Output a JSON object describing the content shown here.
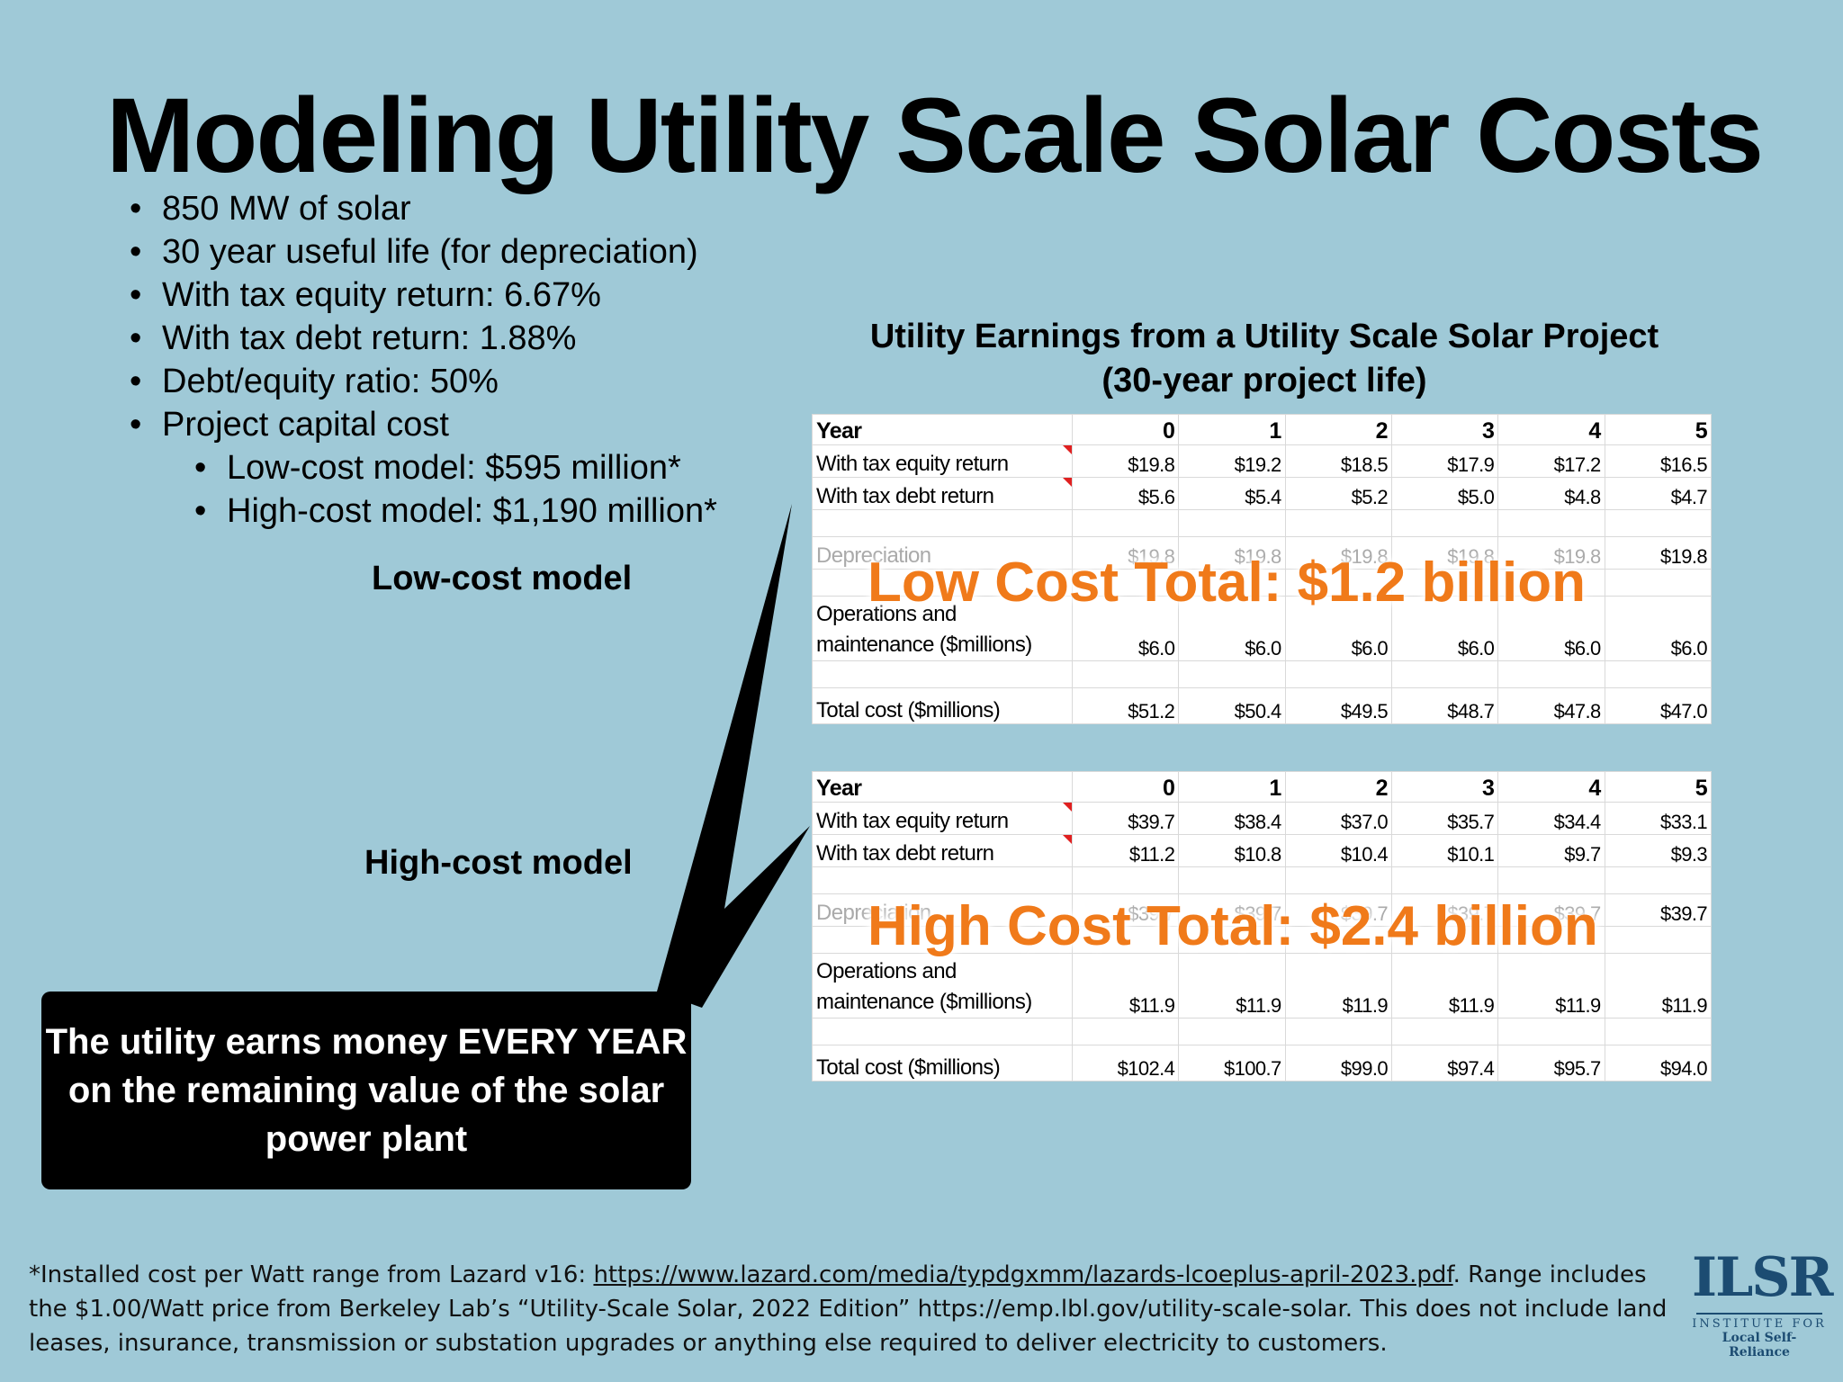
{
  "title": "Modeling Utility Scale Solar Costs",
  "bullets": [
    "850 MW of solar",
    "30 year useful life (for depreciation)",
    "With tax equity return: 6.67%",
    "With tax debt return: 1.88%",
    "Debt/equity ratio: 50%",
    "Project capital cost"
  ],
  "sub_bullets": [
    "Low-cost model: $595 million*",
    "High-cost model: $1,190 million*"
  ],
  "low_label": "Low-cost model",
  "high_label": "High-cost model",
  "table_title": [
    "Utility Earnings from a Utility Scale Solar Project",
    "(30-year project life)"
  ],
  "low_table": {
    "header": [
      "Year",
      "0",
      "1",
      "2",
      "3",
      "4",
      "5"
    ],
    "equity": [
      "With tax equity return",
      "$19.8",
      "$19.2",
      "$18.5",
      "$17.9",
      "$17.2",
      "$16.5"
    ],
    "debt": [
      "With tax debt return",
      "$5.6",
      "$5.4",
      "$5.2",
      "$5.0",
      "$4.8",
      "$4.7"
    ],
    "depreciation": [
      "Depreciation",
      "$19.8",
      "$19.8",
      "$19.8",
      "$19.8",
      "$19.8",
      "$19.8"
    ],
    "om_label": [
      "Operations and",
      "maintenance ($millions)"
    ],
    "om": [
      "$6.0",
      "$6.0",
      "$6.0",
      "$6.0",
      "$6.0",
      "$6.0"
    ],
    "total": [
      "Total cost ($millions)",
      "$51.2",
      "$50.4",
      "$49.5",
      "$48.7",
      "$47.8",
      "$47.0"
    ]
  },
  "high_table": {
    "header": [
      "Year",
      "0",
      "1",
      "2",
      "3",
      "4",
      "5"
    ],
    "equity": [
      "With tax equity return",
      "$39.7",
      "$38.4",
      "$37.0",
      "$35.7",
      "$34.4",
      "$33.1"
    ],
    "debt": [
      "With tax debt return",
      "$11.2",
      "$10.8",
      "$10.4",
      "$10.1",
      "$9.7",
      "$9.3"
    ],
    "depreciation": [
      "Depreciation",
      "$39.7",
      "$39.7",
      "$39.7",
      "$39.7",
      "$39.7",
      "$39.7"
    ],
    "om_label": [
      "Operations and",
      "maintenance ($millions)"
    ],
    "om": [
      "$11.9",
      "$11.9",
      "$11.9",
      "$11.9",
      "$11.9",
      "$11.9"
    ],
    "total": [
      "Total cost ($millions)",
      "$102.4",
      "$100.7",
      "$99.0",
      "$97.4",
      "$95.7",
      "$94.0"
    ]
  },
  "low_overlay": "Low Cost Total: $1.2 billion",
  "high_overlay": "High Cost Total: $2.4 billion",
  "callout": "The utility earns money EVERY YEAR on the remaining value of the solar power plant",
  "footnote": {
    "prefix": "*Installed cost per Watt range from Lazard v16: ",
    "link": "https://www.lazard.com/media/typdgxmm/lazards-lcoeplus-april-2023.pdf",
    "suffix": ". Range includes the $1.00/Watt price from Berkeley Lab’s “Utility-Scale Solar, 2022 Edition” https://emp.lbl.gov/utility-scale-solar. This does not include land leases, insurance, transmission or substation upgrades or anything else required to deliver electricity to customers."
  },
  "logo": {
    "mark": "ILSR",
    "line1": "INSTITUTE FOR",
    "line2": "Local Self-Reliance"
  },
  "colors": {
    "background": "#9fc9d7",
    "overlay": "#f07a1a",
    "callout": "#000000",
    "logo": "#1c4c72"
  }
}
